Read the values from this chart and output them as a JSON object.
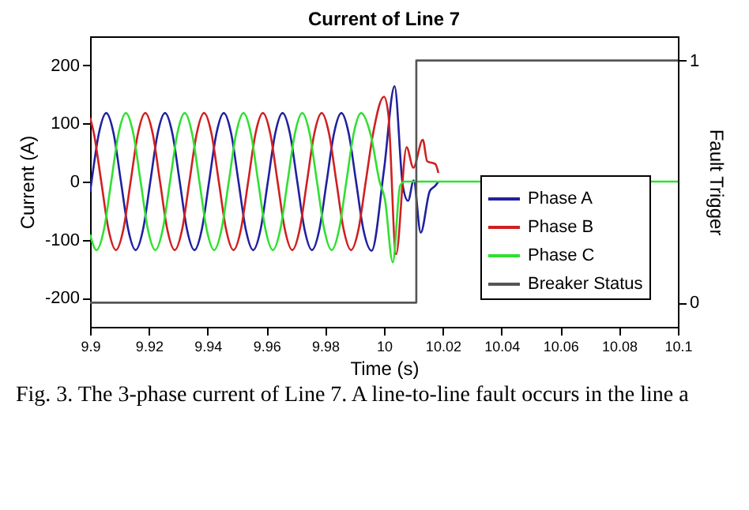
{
  "chart_data": {
    "type": "line",
    "title": "Current of Line 7",
    "xlabel": "Time (s)",
    "ylabel": "Current (A)",
    "y2label": "Fault Trigger",
    "xlim": [
      9.9,
      10.1
    ],
    "xticks": [
      9.9,
      9.92,
      9.94,
      9.96,
      9.98,
      10,
      10.02,
      10.04,
      10.06,
      10.08,
      10.1
    ],
    "ylim": [
      -250,
      250
    ],
    "yticks": [
      -200,
      -100,
      0,
      100,
      200
    ],
    "y2lim": [
      -0.1,
      1.1
    ],
    "y2ticks": [
      0,
      1
    ],
    "legend": "bottom right",
    "annotations": [
      "Fig. 3. The 3-phase current of Line 7. A line-to-line fault occurs in the line a"
    ],
    "series": [
      {
        "name": "Phase A",
        "color": "#2020a0",
        "x": [
          9.9,
          9.9005,
          9.903,
          9.9055,
          9.908,
          9.9105,
          9.913,
          9.9155,
          9.918,
          9.9205,
          9.923,
          9.9255,
          9.928,
          9.9305,
          9.933,
          9.9355,
          9.938,
          9.9405,
          9.943,
          9.9455,
          9.948,
          9.9505,
          9.953,
          9.9555,
          9.958,
          9.9605,
          9.963,
          9.9655,
          9.968,
          9.9705,
          9.973,
          9.9755,
          9.978,
          9.9805,
          9.983,
          9.9855,
          9.988,
          9.9905,
          9.993,
          9.9958,
          10.0,
          10.0036,
          10.0064,
          10.0082,
          10.0101,
          10.0125,
          10.0156,
          10.0175,
          10.0185
        ],
        "values": [
          -18,
          0,
          83,
          118,
          83,
          0,
          -83,
          -118,
          -83,
          0,
          83,
          118,
          83,
          0,
          -83,
          -118,
          -83,
          0,
          83,
          118,
          83,
          0,
          -83,
          -118,
          -83,
          0,
          83,
          118,
          83,
          0,
          -83,
          -118,
          -83,
          0,
          83,
          118,
          83,
          0,
          -83,
          -119,
          20,
          164,
          -7,
          -33,
          2,
          -88,
          -16,
          -7,
          0
        ]
      },
      {
        "name": "Phase B",
        "color": "#d02020",
        "x": [
          9.9,
          9.9013,
          9.9038,
          9.9063,
          9.9088,
          9.9113,
          9.9138,
          9.9163,
          9.9188,
          9.9213,
          9.9238,
          9.9263,
          9.9288,
          9.9313,
          9.9338,
          9.9363,
          9.9388,
          9.9413,
          9.9438,
          9.9463,
          9.9488,
          9.9513,
          9.9538,
          9.9563,
          9.9588,
          9.9613,
          9.9638,
          9.9663,
          9.9688,
          9.9713,
          9.9738,
          9.9763,
          9.9788,
          9.9813,
          9.9838,
          9.9863,
          9.9888,
          9.9913,
          9.9938,
          9.9963,
          10.0,
          10.0015,
          10.0041,
          10.0077,
          10.01,
          10.0132,
          10.0147,
          10.0175,
          10.0185
        ],
        "values": [
          110,
          83,
          0,
          -83,
          -118,
          -83,
          0,
          83,
          118,
          83,
          0,
          -83,
          -118,
          -83,
          0,
          83,
          118,
          83,
          0,
          -83,
          -118,
          -83,
          0,
          83,
          118,
          83,
          0,
          -83,
          -118,
          -83,
          0,
          83,
          118,
          83,
          0,
          -83,
          -118,
          -83,
          0,
          83,
          146,
          115,
          -125,
          59,
          24,
          72,
          35,
          30,
          15
        ]
      },
      {
        "name": "Phase C",
        "color": "#30e030",
        "x": [
          9.9,
          9.9022,
          9.9047,
          9.9072,
          9.9097,
          9.9122,
          9.9147,
          9.9172,
          9.9197,
          9.9222,
          9.9247,
          9.9272,
          9.9297,
          9.9322,
          9.9347,
          9.9372,
          9.9397,
          9.9422,
          9.9447,
          9.9472,
          9.9497,
          9.9522,
          9.9547,
          9.9572,
          9.9597,
          9.9622,
          9.9647,
          9.9672,
          9.9697,
          9.9722,
          9.9747,
          9.9772,
          9.9797,
          9.9822,
          9.9847,
          9.9872,
          9.9897,
          9.9922,
          9.9955,
          9.9985,
          10.0003,
          10.003,
          10.0055,
          10.007,
          10.1
        ],
        "values": [
          -91,
          -118,
          -83,
          0,
          83,
          118,
          83,
          0,
          -83,
          -118,
          -83,
          0,
          83,
          118,
          83,
          0,
          -83,
          -118,
          -83,
          0,
          83,
          118,
          83,
          0,
          -83,
          -118,
          -83,
          0,
          83,
          118,
          83,
          0,
          -83,
          -118,
          -83,
          0,
          83,
          118,
          80,
          0,
          -30,
          -139,
          -7,
          0,
          0
        ]
      },
      {
        "name": "Breaker Status",
        "color": "#555555",
        "type": "step",
        "axis": "y2",
        "x": [
          9.9,
          10.011,
          10.1
        ],
        "values": [
          0,
          1,
          1
        ]
      }
    ]
  }
}
